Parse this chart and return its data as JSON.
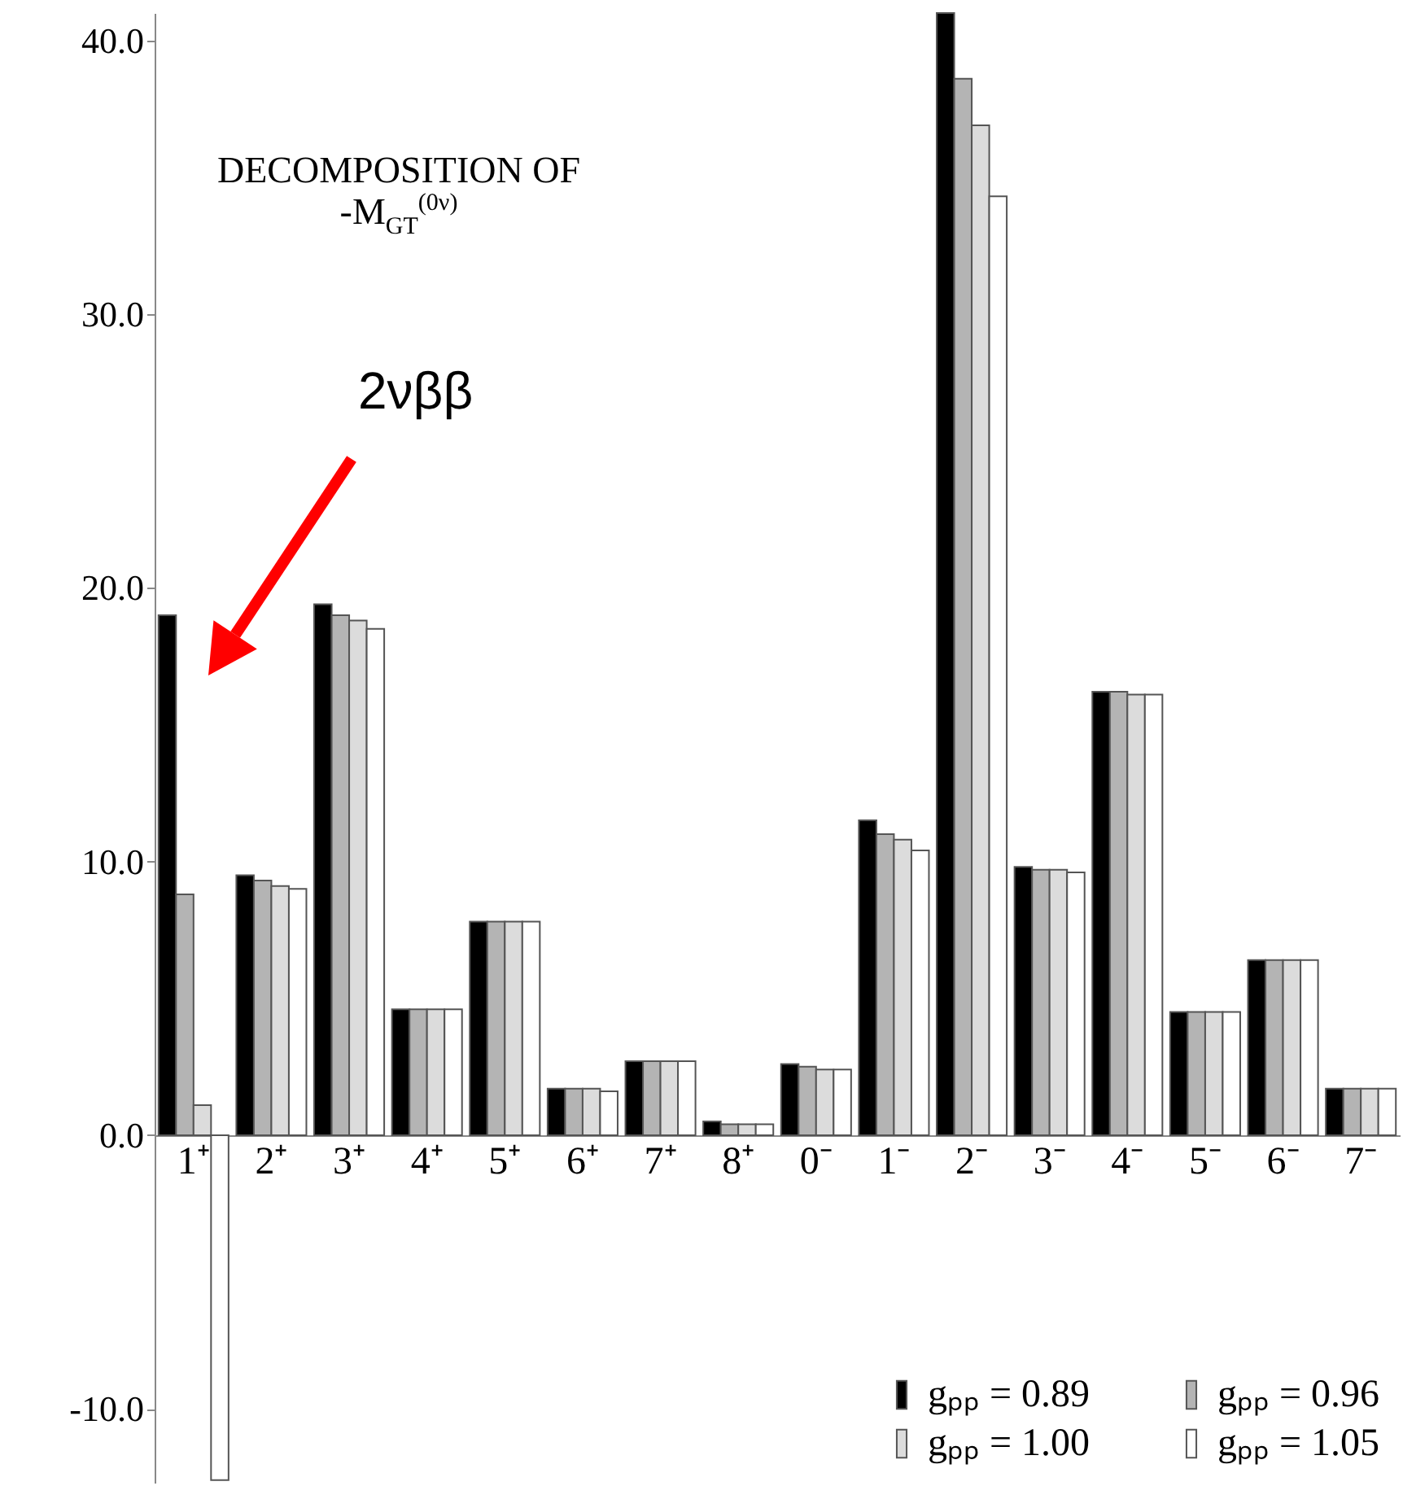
{
  "chart_data": {
    "type": "bar",
    "title": "DECOMPOSITION OF -M$_{GT}$$^{(0ν)}$",
    "categories": [
      "1⁺",
      "2⁺",
      "3⁺",
      "4⁺",
      "5⁺",
      "6⁺",
      "7⁺",
      "8⁺",
      "0⁻",
      "1⁻",
      "2⁻",
      "3⁻",
      "4⁻",
      "5⁻",
      "6⁻",
      "7⁻"
    ],
    "series": [
      {
        "name": "gₚₚ = 0.89",
        "color": "#000000",
        "values": [
          19.0,
          9.5,
          19.4,
          4.6,
          7.8,
          1.7,
          2.7,
          0.5,
          2.6,
          11.5,
          41.0,
          9.8,
          16.2,
          4.5,
          6.4,
          1.7
        ]
      },
      {
        "name": "gₚₚ = 0.96",
        "color": "#b4b4b4",
        "values": [
          8.8,
          9.3,
          19.0,
          4.6,
          7.8,
          1.7,
          2.7,
          0.4,
          2.5,
          11.0,
          38.6,
          9.7,
          16.2,
          4.5,
          6.4,
          1.7
        ]
      },
      {
        "name": "gₚₚ = 1.00",
        "color": "#dcdcdc",
        "values": [
          1.1,
          9.1,
          18.8,
          4.6,
          7.8,
          1.7,
          2.7,
          0.4,
          2.4,
          10.8,
          36.9,
          9.7,
          16.1,
          4.5,
          6.4,
          1.7
        ]
      },
      {
        "name": "gₚₚ = 1.05",
        "color": "#ffffff",
        "values": [
          -12.6,
          9.0,
          18.5,
          4.6,
          7.8,
          1.6,
          2.7,
          0.4,
          2.4,
          10.4,
          34.3,
          9.6,
          16.1,
          4.5,
          6.4,
          1.7
        ]
      }
    ],
    "ylim": [
      -12.7,
      41.0
    ],
    "yticks": [
      {
        "value": -10,
        "label": "-10.0"
      },
      {
        "value": 0,
        "label": "0.0"
      },
      {
        "value": 10,
        "label": "10.0"
      },
      {
        "value": 20,
        "label": "20.0"
      },
      {
        "value": 30,
        "label": "30.0"
      },
      {
        "value": 40,
        "label": "40.0"
      }
    ],
    "annotations": [
      "2νββ"
    ],
    "legend": "bottom right",
    "grid": false
  }
}
